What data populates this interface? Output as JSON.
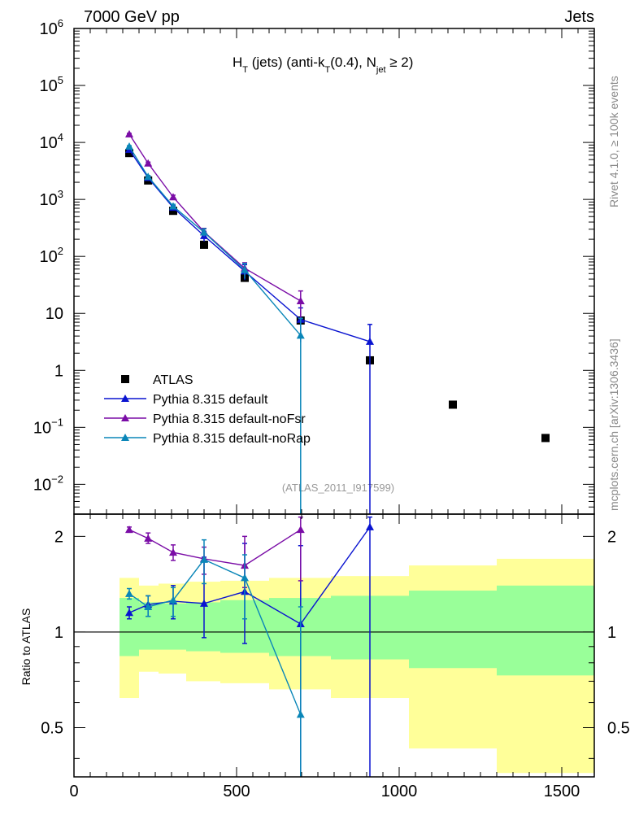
{
  "header": {
    "left": "7000 GeV pp",
    "right": "Jets"
  },
  "side_labels": {
    "rivet": "Rivet 4.1.0, ≥ 100k events",
    "mcplots": "mcplots.cern.ch [arXiv:1306.3436]"
  },
  "colors": {
    "atlas": "#000000",
    "default": "#0a14d0",
    "noFsr": "#7a0ca6",
    "noRap": "#0a86b8",
    "band_outer": "#ffff99",
    "band_inner": "#99ff99"
  },
  "chart_data": [
    {
      "type": "line",
      "panel": "main",
      "title": "H_T (jets) (anti-k_T(0.4), N_jet ≥ 2)",
      "title_parts": {
        "h": "H",
        "t1": "T",
        "mid1": " (jets) (anti-k",
        "t2": "T",
        "mid2": "(0.4), N",
        "jet": "jet",
        "tail": " ≥ 2)"
      },
      "watermark": "(ATLAS_2011_I917599)",
      "xlim": [
        0,
        1600
      ],
      "ylim": [
        0.003,
        1000000
      ],
      "yscale": "log",
      "y_tick_labels": [
        {
          "v": 1000000,
          "base": "10",
          "exp": "6"
        },
        {
          "v": 100000,
          "base": "10",
          "exp": "5"
        },
        {
          "v": 10000,
          "base": "10",
          "exp": "4"
        },
        {
          "v": 1000,
          "base": "10",
          "exp": "3"
        },
        {
          "v": 100,
          "base": "10",
          "exp": "2"
        },
        {
          "v": 10,
          "base": "10",
          "exp": ""
        },
        {
          "v": 1,
          "base": "1",
          "exp": ""
        },
        {
          "v": 0.1,
          "base": "10",
          "exp": "−1"
        },
        {
          "v": 0.01,
          "base": "10",
          "exp": "−2"
        }
      ],
      "legend_position": "lower-left",
      "series": [
        {
          "name": "ATLAS",
          "key": "atlas",
          "marker": "square",
          "x": [
            170,
            228,
            305,
            400,
            525,
            697,
            910,
            1165,
            1450
          ],
          "y": [
            6500,
            2150,
            630,
            160,
            42,
            7.5,
            1.5,
            0.25,
            0.065
          ]
        },
        {
          "name": "Pythia 8.315 default",
          "key": "default",
          "marker": "triangle",
          "x": [
            170,
            228,
            305,
            400,
            525,
            697,
            910
          ],
          "y": [
            7500,
            2400,
            720,
            230,
            55,
            7.8,
            3.2
          ],
          "err": [
            0.03,
            0.05,
            0.08,
            0.2,
            0.3,
            0.6,
            1.0
          ]
        },
        {
          "name": "Pythia 8.315 default-noFsr",
          "key": "noFsr",
          "marker": "triangle",
          "x": [
            170,
            228,
            305,
            400,
            525,
            697
          ],
          "y": [
            14000,
            4300,
            1100,
            270,
            62,
            16.5
          ],
          "err": [
            0.03,
            0.05,
            0.08,
            0.15,
            0.25,
            0.5
          ]
        },
        {
          "name": "Pythia 8.315 default-noRap",
          "key": "noRap",
          "marker": "triangle",
          "x": [
            170,
            228,
            305,
            400,
            525,
            697
          ],
          "y": [
            8500,
            2500,
            760,
            265,
            58,
            4.1
          ],
          "err": [
            0.03,
            0.05,
            0.08,
            0.15,
            0.3,
            1.0
          ]
        }
      ]
    },
    {
      "type": "line",
      "panel": "ratio",
      "ylabel": "Ratio to ATLAS",
      "xlim": [
        0,
        1600
      ],
      "ylim": [
        0.35,
        2.35
      ],
      "yscale": "log",
      "y_tick_labels": [
        {
          "v": 2,
          "t": "2"
        },
        {
          "v": 1,
          "t": "1"
        },
        {
          "v": 0.5,
          "t": "0.5"
        }
      ],
      "x_tick_labels": [
        {
          "v": 0,
          "t": "0"
        },
        {
          "v": 500,
          "t": "500"
        },
        {
          "v": 1000,
          "t": "1000"
        },
        {
          "v": 1500,
          "t": "1500"
        }
      ],
      "bands": [
        {
          "x0": 140,
          "x1": 200,
          "inner": [
            0.84,
            1.28
          ],
          "outer": [
            0.62,
            1.48
          ]
        },
        {
          "x0": 200,
          "x1": 260,
          "inner": [
            0.88,
            1.24
          ],
          "outer": [
            0.75,
            1.4
          ]
        },
        {
          "x0": 260,
          "x1": 345,
          "inner": [
            0.88,
            1.23
          ],
          "outer": [
            0.74,
            1.42
          ]
        },
        {
          "x0": 345,
          "x1": 450,
          "inner": [
            0.87,
            1.24
          ],
          "outer": [
            0.7,
            1.44
          ]
        },
        {
          "x0": 450,
          "x1": 600,
          "inner": [
            0.86,
            1.26
          ],
          "outer": [
            0.69,
            1.45
          ]
        },
        {
          "x0": 600,
          "x1": 790,
          "inner": [
            0.84,
            1.28
          ],
          "outer": [
            0.66,
            1.48
          ]
        },
        {
          "x0": 790,
          "x1": 1030,
          "inner": [
            0.82,
            1.3
          ],
          "outer": [
            0.62,
            1.5
          ]
        },
        {
          "x0": 1030,
          "x1": 1300,
          "inner": [
            0.77,
            1.35
          ],
          "outer": [
            0.43,
            1.62
          ]
        },
        {
          "x0": 1300,
          "x1": 1600,
          "inner": [
            0.73,
            1.4
          ],
          "outer": [
            0.36,
            1.7
          ]
        }
      ],
      "series": [
        {
          "name": "Pythia 8.315 default",
          "key": "default",
          "x": [
            170,
            228,
            305,
            400,
            525,
            697,
            910
          ],
          "y": [
            1.15,
            1.22,
            1.25,
            1.23,
            1.34,
            1.06,
            2.14
          ],
          "lo": [
            1.1,
            1.12,
            1.1,
            0.96,
            0.92,
            0.2,
            0.2
          ],
          "hi": [
            1.2,
            1.3,
            1.4,
            1.72,
            1.9,
            1.87,
            2.3
          ]
        },
        {
          "name": "Pythia 8.315 default-noFsr",
          "key": "noFsr",
          "x": [
            170,
            228,
            305,
            400,
            525,
            697
          ],
          "y": [
            2.1,
            1.97,
            1.78,
            1.7,
            1.62,
            2.1
          ],
          "lo": [
            2.06,
            1.9,
            1.68,
            1.52,
            1.38,
            1.45
          ],
          "hi": [
            2.14,
            2.05,
            1.88,
            1.85,
            2.0,
            2.3
          ]
        },
        {
          "name": "Pythia 8.315 default-noRap",
          "key": "noRap",
          "x": [
            170,
            228,
            305,
            400,
            525,
            697
          ],
          "y": [
            1.32,
            1.2,
            1.26,
            1.69,
            1.48,
            0.55
          ],
          "lo": [
            1.27,
            1.12,
            1.12,
            1.42,
            1.1,
            0.2
          ],
          "hi": [
            1.37,
            1.3,
            1.38,
            1.95,
            1.75,
            1.2
          ]
        }
      ],
      "reference_line": 1
    }
  ]
}
